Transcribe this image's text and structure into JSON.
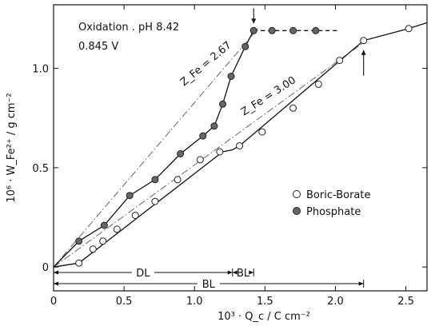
{
  "chart_data": {
    "type": "scatter",
    "xlabel": "10³ · Q_c / C cm⁻²",
    "ylabel": "10⁶ · W_Fe²⁺ / g cm⁻²",
    "xlim": [
      0,
      2.65
    ],
    "ylim": [
      -0.12,
      1.32
    ],
    "x_ticks": [
      0,
      0.5,
      1.0,
      1.5,
      2.0,
      2.5
    ],
    "x_tick_labels": [
      "0",
      "0.5",
      "1.0",
      "1.5",
      "2.0",
      "2.5"
    ],
    "y_ticks": [
      0,
      0.5,
      1.0
    ],
    "y_tick_labels": [
      "0",
      "0.5",
      "1.0"
    ],
    "grid": false,
    "legend_position": "right",
    "annotations": {
      "condition_line1": "Oxidation . pH 8.42",
      "condition_line2": "0.845 V",
      "zfe_267": "Z_Fe = 2.67",
      "zfe_300": "Z_Fe = 3.00"
    },
    "reference_lines": [
      {
        "label": "Z_Fe = 2.67",
        "x": [
          0,
          1.45
        ],
        "y": [
          0,
          1.2
        ],
        "style": "dash-dot"
      },
      {
        "label": "Z_Fe = 3.00",
        "x": [
          0,
          2.2
        ],
        "y": [
          0,
          1.13
        ],
        "style": "dash-dot"
      }
    ],
    "series": [
      {
        "name": "Boric-Borate",
        "marker": "open-circle",
        "x": [
          0.18,
          0.28,
          0.35,
          0.45,
          0.58,
          0.72,
          0.88,
          1.04,
          1.18,
          1.32,
          1.48,
          1.7,
          1.88,
          2.03,
          2.2,
          2.52
        ],
        "y": [
          0.02,
          0.09,
          0.13,
          0.19,
          0.26,
          0.33,
          0.44,
          0.54,
          0.58,
          0.61,
          0.68,
          0.8,
          0.92,
          1.04,
          1.14,
          1.2
        ],
        "line_x": [
          0,
          0.18,
          1.2,
          1.27,
          1.32,
          2.2,
          2.52,
          2.65
        ],
        "line_y": [
          0,
          0.02,
          0.58,
          0.59,
          0.61,
          1.14,
          1.2,
          1.23
        ]
      },
      {
        "name": "Phosphate",
        "marker": "filled-circle",
        "x": [
          0.18,
          0.36,
          0.54,
          0.72,
          0.9,
          1.06,
          1.14,
          1.2,
          1.26,
          1.36,
          1.42,
          1.55,
          1.7,
          1.86
        ],
        "y": [
          0.13,
          0.21,
          0.36,
          0.44,
          0.57,
          0.66,
          0.71,
          0.82,
          0.96,
          1.11,
          1.19,
          1.19,
          1.19,
          1.19
        ],
        "line_x": [
          0,
          0.18,
          0.36,
          0.54,
          0.72,
          0.9,
          1.06,
          1.14,
          1.2,
          1.26,
          1.36,
          1.42,
          1.55,
          1.7,
          1.86,
          2.02
        ],
        "line_y": [
          0,
          0.13,
          0.21,
          0.36,
          0.44,
          0.57,
          0.66,
          0.71,
          0.82,
          0.96,
          1.11,
          1.19,
          1.19,
          1.19,
          1.19,
          1.19
        ],
        "dashed_from_index": 11
      }
    ],
    "arrows": [
      {
        "name": "arrow-phosphate-plateau",
        "x": 1.42,
        "y": 1.19,
        "direction": "down"
      },
      {
        "name": "arrow-borate-break",
        "x": 2.2,
        "y": 1.14,
        "direction": "up"
      }
    ],
    "ranges": [
      {
        "label": "DL",
        "x": [
          0,
          1.27
        ],
        "row": 1
      },
      {
        "label": "BL",
        "x": [
          1.27,
          1.42
        ],
        "row": 1
      },
      {
        "label": "BL",
        "x": [
          0,
          2.2
        ],
        "row": 2
      }
    ],
    "legend": [
      {
        "label": "Boric-Borate",
        "marker": "open-circle"
      },
      {
        "label": "Phosphate",
        "marker": "filled-circle"
      }
    ]
  }
}
